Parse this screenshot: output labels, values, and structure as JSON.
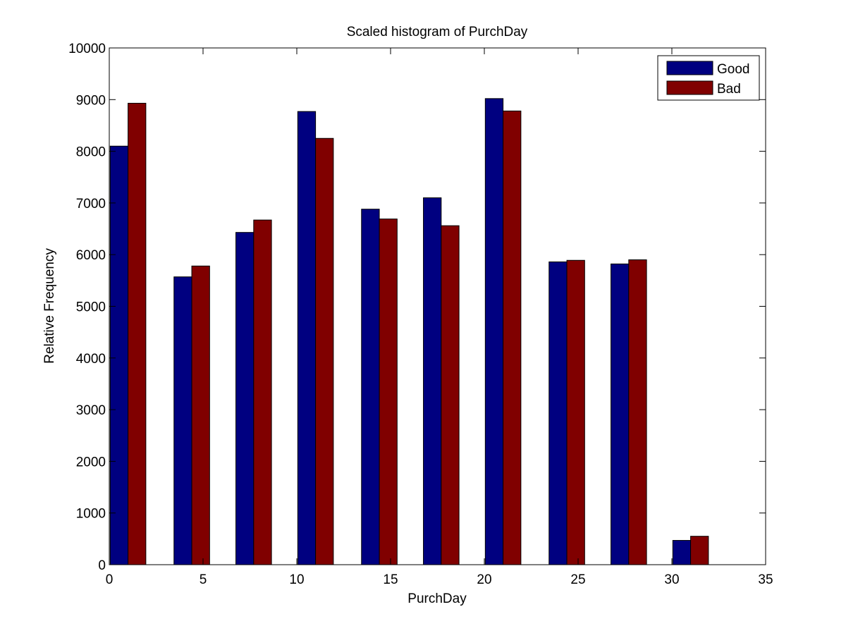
{
  "chart_data": {
    "type": "bar",
    "title": "Scaled histogram of PurchDay",
    "xlabel": "PurchDay",
    "ylabel": "Relative Frequency",
    "xlim": [
      0,
      35
    ],
    "ylim": [
      0,
      10000
    ],
    "x_ticks": [
      0,
      5,
      10,
      15,
      20,
      25,
      30,
      35
    ],
    "y_ticks": [
      0,
      1000,
      2000,
      3000,
      4000,
      5000,
      6000,
      7000,
      8000,
      9000,
      10000
    ],
    "bin_centers": [
      1,
      4.4,
      7.7,
      11,
      14.4,
      17.7,
      21,
      24.4,
      27.7,
      31
    ],
    "series": [
      {
        "name": "Good",
        "color": "#000080",
        "values": [
          8100,
          5570,
          6430,
          8770,
          6880,
          7100,
          9020,
          5860,
          5820,
          470
        ]
      },
      {
        "name": "Bad",
        "color": "#800000",
        "values": [
          8930,
          5780,
          6670,
          8250,
          6690,
          6560,
          8780,
          5890,
          5900,
          550
        ]
      }
    ],
    "grid": false,
    "legend": "top-right"
  }
}
